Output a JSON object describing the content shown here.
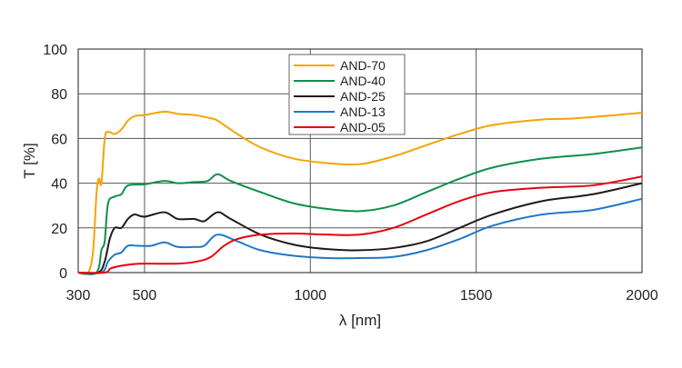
{
  "chart_data": {
    "type": "line",
    "title": "",
    "xlabel": "λ [nm]",
    "ylabel": "T [%]",
    "xlim": [
      300,
      2000
    ],
    "ylim": [
      0,
      100
    ],
    "xticks": [
      300,
      500,
      1000,
      1500,
      2000
    ],
    "yticks": [
      0,
      20,
      40,
      60,
      80,
      100
    ],
    "xgrid": [
      500,
      1000,
      1500
    ],
    "grid": true,
    "legend_position": "top-center",
    "series": [
      {
        "name": "AND-70",
        "color": "#f5a400",
        "points": [
          [
            300,
            0
          ],
          [
            330,
            0
          ],
          [
            345,
            10
          ],
          [
            355,
            35
          ],
          [
            362,
            42
          ],
          [
            370,
            40
          ],
          [
            380,
            60
          ],
          [
            390,
            63
          ],
          [
            410,
            62
          ],
          [
            430,
            64
          ],
          [
            450,
            68
          ],
          [
            470,
            70
          ],
          [
            500,
            70.5
          ],
          [
            560,
            72
          ],
          [
            600,
            71
          ],
          [
            650,
            70.5
          ],
          [
            700,
            69
          ],
          [
            720,
            68
          ],
          [
            780,
            62
          ],
          [
            850,
            56
          ],
          [
            950,
            51
          ],
          [
            1050,
            49
          ],
          [
            1150,
            48.5
          ],
          [
            1250,
            52
          ],
          [
            1350,
            57
          ],
          [
            1450,
            62
          ],
          [
            1550,
            66
          ],
          [
            1700,
            68.5
          ],
          [
            1800,
            69
          ],
          [
            2000,
            71.5
          ]
        ]
      },
      {
        "name": "AND-40",
        "color": "#0e8f4a",
        "points": [
          [
            300,
            0
          ],
          [
            355,
            0
          ],
          [
            370,
            10
          ],
          [
            380,
            14
          ],
          [
            390,
            31
          ],
          [
            410,
            34
          ],
          [
            430,
            35
          ],
          [
            450,
            39
          ],
          [
            500,
            39.5
          ],
          [
            560,
            41
          ],
          [
            600,
            40
          ],
          [
            650,
            40.5
          ],
          [
            690,
            41
          ],
          [
            720,
            44
          ],
          [
            760,
            41
          ],
          [
            850,
            36
          ],
          [
            950,
            31
          ],
          [
            1050,
            28.5
          ],
          [
            1150,
            27.5
          ],
          [
            1250,
            30
          ],
          [
            1350,
            36
          ],
          [
            1450,
            42
          ],
          [
            1550,
            47
          ],
          [
            1700,
            51
          ],
          [
            1850,
            53
          ],
          [
            2000,
            56
          ]
        ]
      },
      {
        "name": "AND-25",
        "color": "#231815",
        "points": [
          [
            300,
            0
          ],
          [
            360,
            0
          ],
          [
            380,
            5
          ],
          [
            395,
            15
          ],
          [
            410,
            20
          ],
          [
            430,
            20
          ],
          [
            450,
            24
          ],
          [
            470,
            26
          ],
          [
            500,
            25
          ],
          [
            560,
            27
          ],
          [
            600,
            24
          ],
          [
            650,
            24
          ],
          [
            680,
            23
          ],
          [
            720,
            27
          ],
          [
            760,
            24
          ],
          [
            850,
            17
          ],
          [
            950,
            12.5
          ],
          [
            1050,
            10.5
          ],
          [
            1150,
            10
          ],
          [
            1250,
            11
          ],
          [
            1350,
            14
          ],
          [
            1450,
            20
          ],
          [
            1550,
            26
          ],
          [
            1700,
            32
          ],
          [
            1850,
            35
          ],
          [
            2000,
            40
          ]
        ]
      },
      {
        "name": "AND-13",
        "color": "#1f78c8",
        "points": [
          [
            300,
            0
          ],
          [
            370,
            0
          ],
          [
            390,
            5
          ],
          [
            410,
            8
          ],
          [
            430,
            9
          ],
          [
            450,
            12
          ],
          [
            480,
            12
          ],
          [
            520,
            12
          ],
          [
            560,
            13.5
          ],
          [
            600,
            11.5
          ],
          [
            650,
            11.5
          ],
          [
            680,
            12
          ],
          [
            720,
            17
          ],
          [
            780,
            14
          ],
          [
            850,
            10
          ],
          [
            950,
            7.5
          ],
          [
            1050,
            6.5
          ],
          [
            1150,
            6.5
          ],
          [
            1250,
            7
          ],
          [
            1350,
            10
          ],
          [
            1450,
            15
          ],
          [
            1550,
            21
          ],
          [
            1700,
            26
          ],
          [
            1850,
            28
          ],
          [
            2000,
            33
          ]
        ]
      },
      {
        "name": "AND-05",
        "color": "#e60012",
        "points": [
          [
            300,
            0
          ],
          [
            380,
            0
          ],
          [
            400,
            2
          ],
          [
            450,
            3.5
          ],
          [
            500,
            4
          ],
          [
            600,
            4
          ],
          [
            660,
            5
          ],
          [
            700,
            7
          ],
          [
            740,
            12
          ],
          [
            780,
            15
          ],
          [
            850,
            17
          ],
          [
            950,
            17.5
          ],
          [
            1050,
            17
          ],
          [
            1150,
            17
          ],
          [
            1250,
            20
          ],
          [
            1350,
            26
          ],
          [
            1450,
            32
          ],
          [
            1550,
            36
          ],
          [
            1700,
            38
          ],
          [
            1850,
            39
          ],
          [
            2000,
            43
          ]
        ]
      }
    ]
  }
}
